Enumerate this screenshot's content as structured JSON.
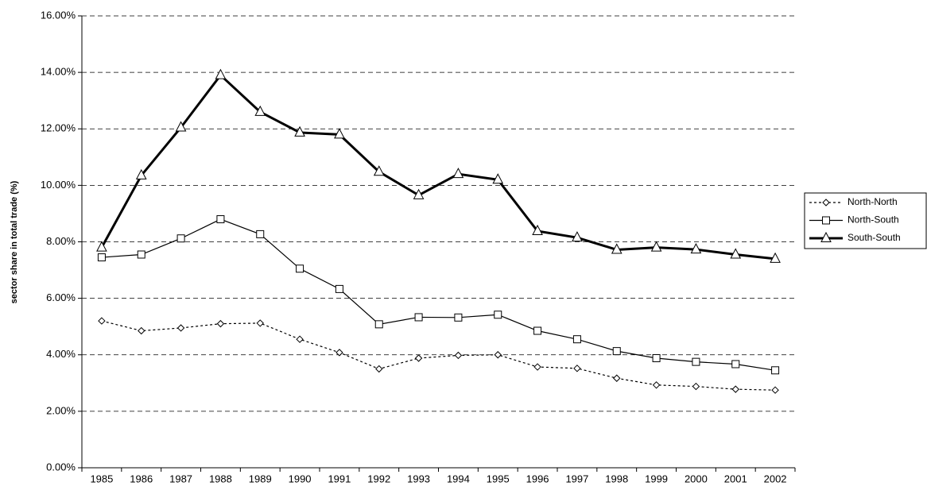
{
  "chart_data": {
    "type": "line",
    "y_label": "sector share in total trade (%)",
    "categories": [
      "1985",
      "1986",
      "1987",
      "1988",
      "1989",
      "1990",
      "1991",
      "1992",
      "1993",
      "1994",
      "1995",
      "1996",
      "1997",
      "1998",
      "1999",
      "2000",
      "2001",
      "2002"
    ],
    "series": [
      {
        "name": "North-North",
        "color": "#000000",
        "dash": "dotted",
        "width": 1.2,
        "marker": "diamond",
        "values": [
          5.2,
          4.85,
          4.95,
          5.1,
          5.12,
          4.55,
          4.08,
          3.5,
          3.88,
          3.98,
          4.0,
          3.57,
          3.52,
          3.17,
          2.93,
          2.88,
          2.78,
          2.75
        ]
      },
      {
        "name": "North-South",
        "color": "#000000",
        "dash": "solid",
        "width": 1.2,
        "marker": "square",
        "values": [
          7.45,
          7.55,
          8.12,
          8.8,
          8.27,
          7.05,
          6.33,
          5.08,
          5.33,
          5.32,
          5.42,
          4.85,
          4.55,
          4.13,
          3.88,
          3.75,
          3.67,
          3.45
        ]
      },
      {
        "name": "South-South",
        "color": "#000000",
        "dash": "solid",
        "width": 3,
        "marker": "triangle",
        "values": [
          7.8,
          10.35,
          12.05,
          13.9,
          12.6,
          11.87,
          11.8,
          10.48,
          9.65,
          10.4,
          10.2,
          8.38,
          8.15,
          7.72,
          7.8,
          7.73,
          7.55,
          7.4
        ]
      }
    ],
    "ylim": [
      0,
      16
    ],
    "yticks": [
      {
        "value": 0,
        "label": "0.00%"
      },
      {
        "value": 2,
        "label": "2.00%"
      },
      {
        "value": 4,
        "label": "4.00%"
      },
      {
        "value": 6,
        "label": "6.00%"
      },
      {
        "value": 8,
        "label": "8.00%"
      },
      {
        "value": 10,
        "label": "10.00%"
      },
      {
        "value": 12,
        "label": "12.00%"
      },
      {
        "value": 14,
        "label": "14.00%"
      },
      {
        "value": 16,
        "label": "16.00%"
      }
    ],
    "grid": true,
    "legend": "right"
  }
}
